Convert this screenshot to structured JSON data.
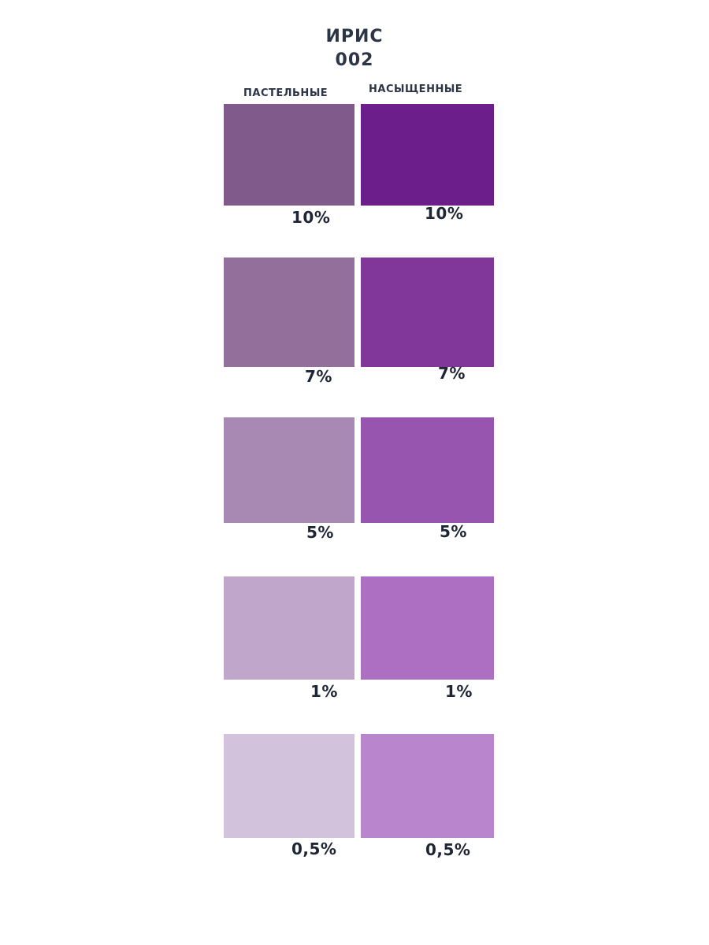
{
  "title": {
    "name": "ИРИС",
    "code": "002"
  },
  "columns": {
    "pastel_label": "ПАСТЕЛЬНЫЕ",
    "saturated_label": "НАСЫЩЕННЫЕ"
  },
  "rows": [
    {
      "pastel": {
        "color": "#7f5a8b",
        "percent": "10%"
      },
      "saturated": {
        "color": "#6c1f8a",
        "percent": "10%"
      }
    },
    {
      "pastel": {
        "color": "#936f9b",
        "percent": "7%"
      },
      "saturated": {
        "color": "#803799",
        "percent": "7%"
      }
    },
    {
      "pastel": {
        "color": "#a789b3",
        "percent": "5%"
      },
      "saturated": {
        "color": "#9855b0",
        "percent": "5%"
      }
    },
    {
      "pastel": {
        "color": "#c0a6ca",
        "percent": "1%"
      },
      "saturated": {
        "color": "#ac6fc1",
        "percent": "1%"
      }
    },
    {
      "pastel": {
        "color": "#d3c2dc",
        "percent": "0,5%"
      },
      "saturated": {
        "color": "#b985cc",
        "percent": "0,5%"
      }
    }
  ]
}
